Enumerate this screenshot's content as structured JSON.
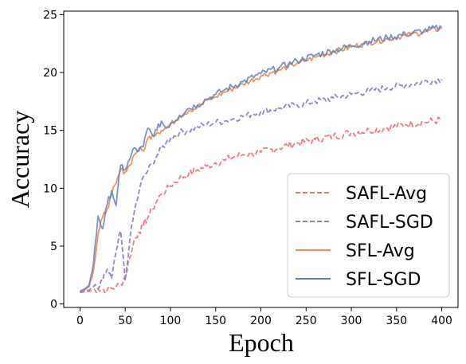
{
  "chart_data": {
    "type": "line",
    "xlabel": "Epoch",
    "ylabel": "Accuracy",
    "xlim": [
      -18,
      418
    ],
    "ylim": [
      -0.3,
      25.3
    ],
    "x_ticks": [
      0,
      50,
      100,
      150,
      200,
      250,
      300,
      350,
      400
    ],
    "y_ticks": [
      0,
      5,
      10,
      15,
      20,
      25
    ],
    "grid": false,
    "legend_position": "bottom-right",
    "series": [
      {
        "name": "SAFL-Avg",
        "color": "#e8747c",
        "dash": "dashed",
        "x": [
          0,
          10,
          20,
          30,
          40,
          45,
          50,
          55,
          60,
          65,
          70,
          75,
          80,
          85,
          90,
          95,
          100,
          110,
          120,
          130,
          140,
          150,
          160,
          170,
          180,
          190,
          200,
          220,
          240,
          260,
          280,
          300,
          320,
          340,
          360,
          380,
          400
        ],
        "values": [
          1.0,
          1.1,
          1.3,
          1.2,
          1.5,
          1.7,
          2.4,
          4.0,
          5.5,
          6.2,
          6.8,
          7.5,
          8.2,
          8.9,
          9.5,
          9.8,
          10.2,
          10.9,
          11.2,
          11.6,
          11.9,
          12.2,
          12.4,
          12.7,
          12.9,
          13.0,
          13.1,
          13.5,
          13.9,
          14.2,
          14.5,
          14.8,
          15.0,
          15.2,
          15.5,
          15.7,
          15.9
        ]
      },
      {
        "name": "SAFL-SGD",
        "color": "#8c80c0",
        "dash": "dashed",
        "x": [
          0,
          10,
          15,
          20,
          25,
          30,
          35,
          40,
          45,
          50,
          55,
          60,
          65,
          70,
          75,
          80,
          85,
          90,
          95,
          100,
          110,
          120,
          130,
          140,
          150,
          160,
          170,
          180,
          190,
          200,
          220,
          240,
          260,
          280,
          300,
          320,
          340,
          360,
          380,
          400
        ],
        "values": [
          1.0,
          1.2,
          1.5,
          1.3,
          2.0,
          3.0,
          2.2,
          4.5,
          6.3,
          2.0,
          5.5,
          8.0,
          9.6,
          11.0,
          11.5,
          12.2,
          12.8,
          13.4,
          13.9,
          14.3,
          14.8,
          15.0,
          15.3,
          15.5,
          15.7,
          15.8,
          16.0,
          16.2,
          16.4,
          16.6,
          16.9,
          17.2,
          17.5,
          17.8,
          18.1,
          18.4,
          18.7,
          18.9,
          19.2,
          19.4
        ]
      },
      {
        "name": "SFL-Avg",
        "color": "#f08c5a",
        "dash": "solid",
        "x": [
          0,
          5,
          10,
          15,
          20,
          25,
          30,
          35,
          40,
          45,
          50,
          55,
          60,
          65,
          70,
          75,
          80,
          85,
          90,
          95,
          100,
          110,
          120,
          130,
          140,
          150,
          160,
          180,
          200,
          220,
          240,
          260,
          280,
          300,
          320,
          340,
          360,
          380,
          400
        ],
        "values": [
          1.1,
          1.2,
          1.5,
          3.0,
          6.0,
          7.5,
          8.2,
          9.5,
          10.4,
          11.6,
          11.4,
          12.0,
          12.9,
          13.4,
          13.2,
          14.3,
          14.6,
          14.8,
          15.0,
          15.2,
          15.5,
          16.2,
          16.7,
          17.0,
          17.6,
          17.9,
          18.3,
          19.0,
          19.7,
          20.2,
          20.8,
          21.3,
          21.8,
          22.2,
          22.6,
          22.9,
          23.2,
          23.5,
          23.8
        ]
      },
      {
        "name": "SFL-SGD",
        "color": "#5c82b8",
        "dash": "solid",
        "x": [
          0,
          5,
          10,
          15,
          20,
          25,
          30,
          35,
          40,
          45,
          50,
          55,
          60,
          65,
          70,
          75,
          80,
          85,
          90,
          95,
          100,
          110,
          120,
          130,
          140,
          150,
          160,
          180,
          200,
          220,
          240,
          260,
          280,
          300,
          320,
          340,
          360,
          380,
          400
        ],
        "values": [
          1.1,
          1.3,
          1.6,
          3.6,
          7.6,
          6.5,
          8.6,
          9.8,
          8.5,
          12.0,
          11.6,
          12.5,
          13.5,
          13.2,
          13.6,
          15.2,
          14.6,
          15.0,
          15.8,
          15.2,
          15.6,
          16.3,
          16.9,
          17.2,
          17.7,
          18.1,
          18.5,
          19.2,
          19.9,
          20.4,
          21.0,
          21.5,
          21.9,
          22.3,
          22.7,
          23.0,
          23.3,
          23.6,
          23.9
        ]
      }
    ]
  }
}
